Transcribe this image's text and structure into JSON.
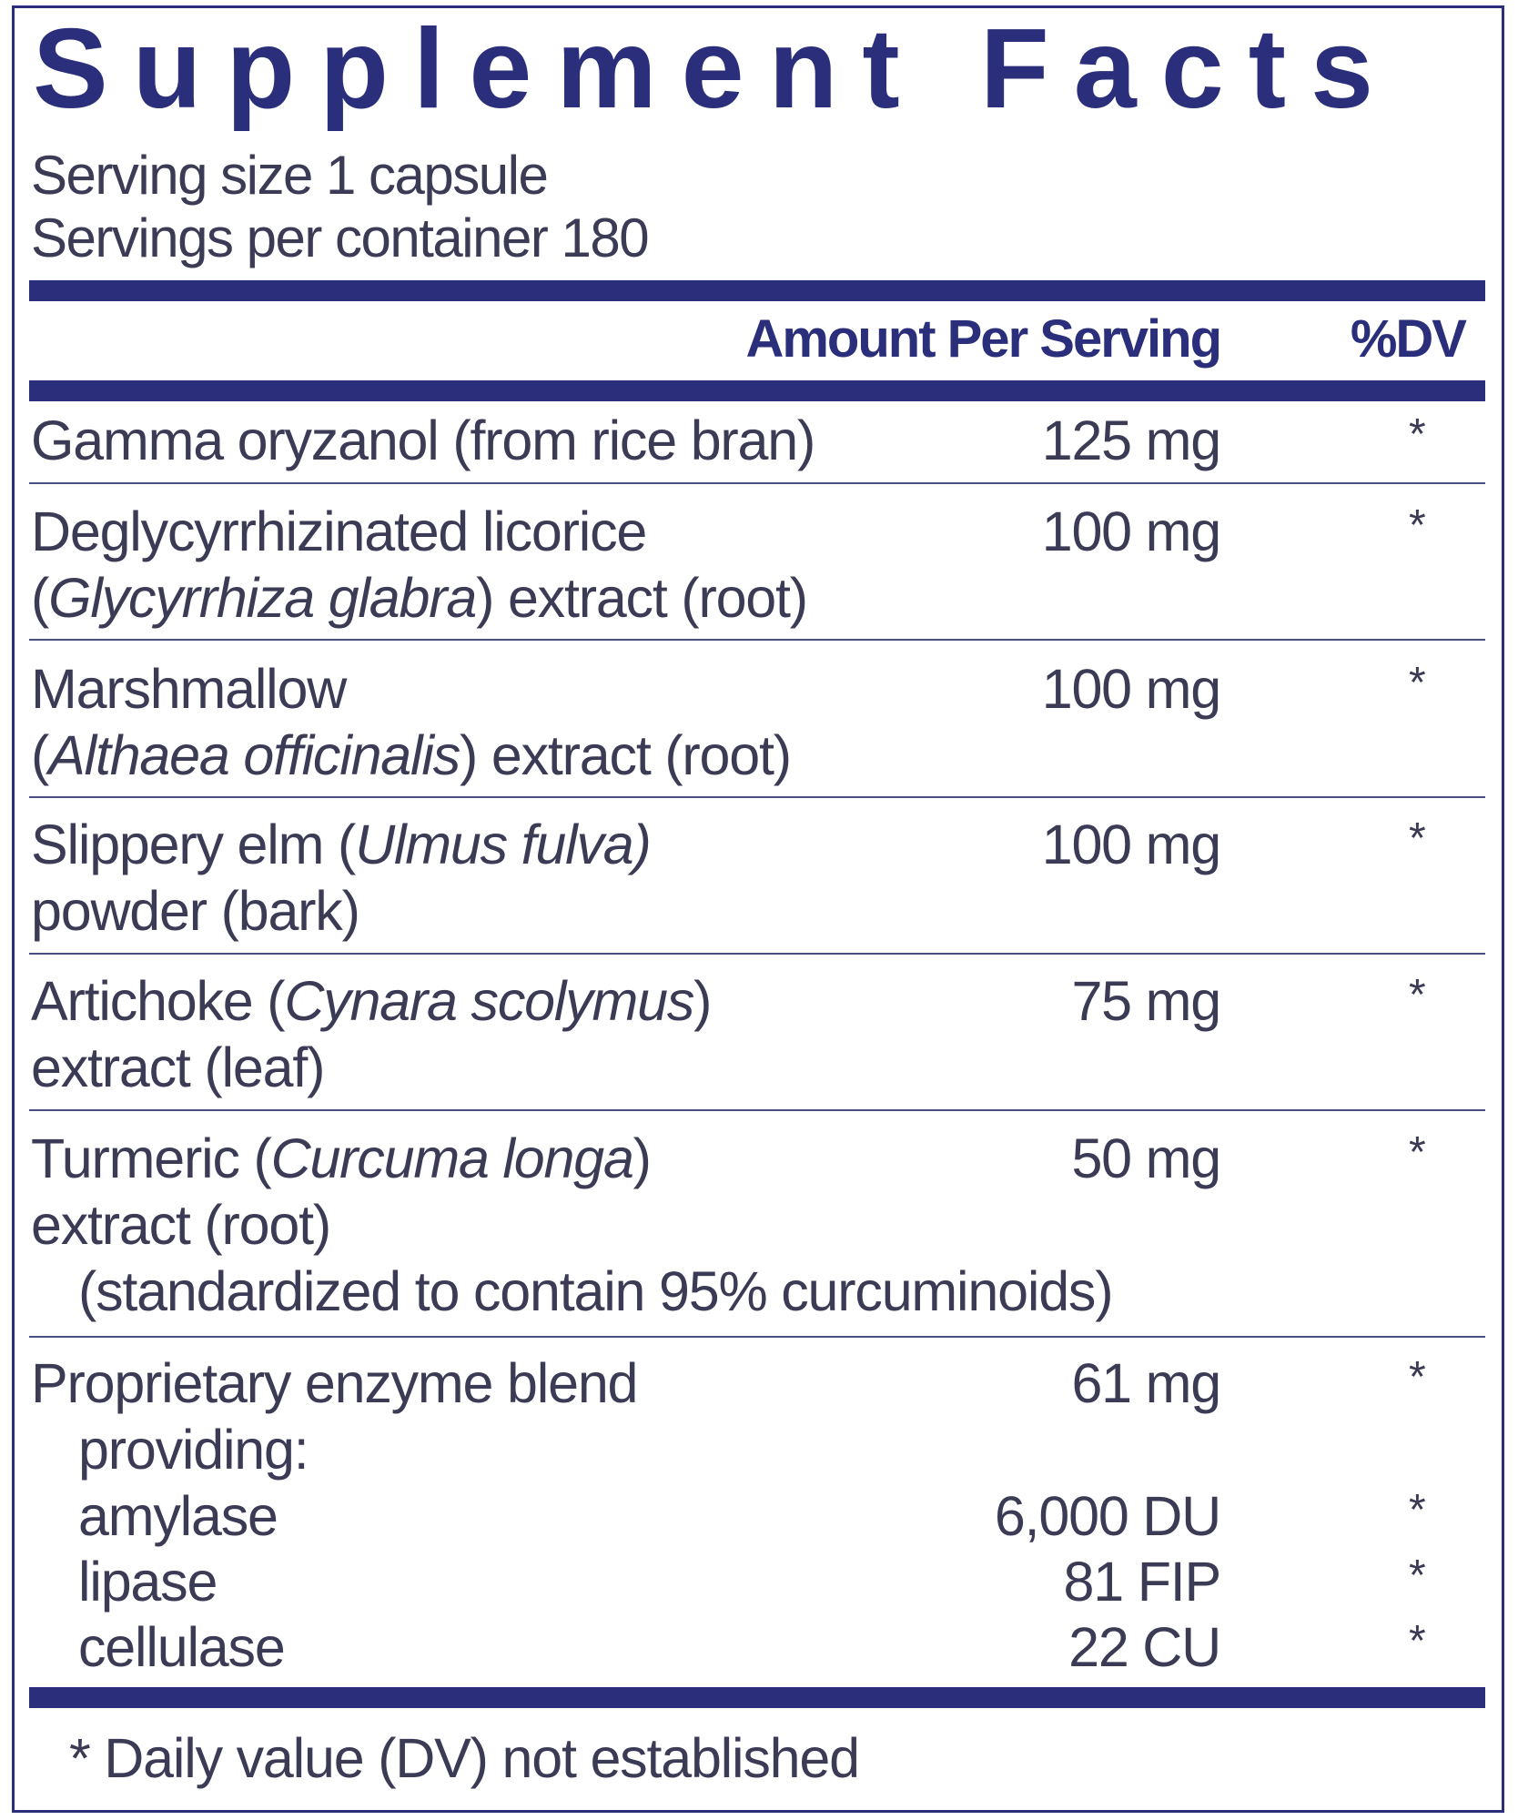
{
  "title": "Supplement Facts",
  "serving_size": "Serving size  1 capsule",
  "servings_per_container": "Servings per container  180",
  "header": {
    "amount": "Amount Per Serving",
    "dv": "%DV"
  },
  "colors": {
    "navy": "#2b2f7b",
    "text": "#3b3b55"
  },
  "rows": [
    {
      "l1": [
        "Gamma oryzanol (from rice bran)"
      ],
      "amount": "125 mg",
      "dv": "*"
    },
    {
      "l1": [
        "Deglycyrrhizinated licorice"
      ],
      "l2": [
        "(",
        "Glycyrrhiza glabra",
        ") extract (root)"
      ],
      "amount": "100 mg",
      "dv": "*"
    },
    {
      "l1": [
        "Marshmallow"
      ],
      "l2": [
        "(",
        "Althaea officinalis",
        ") extract (root)"
      ],
      "amount": "100 mg",
      "dv": "*"
    },
    {
      "l1": [
        "Slippery elm (",
        "Ulmus fulva)"
      ],
      "l2": [
        "powder (bark)"
      ],
      "amount": "100 mg",
      "dv": "*"
    },
    {
      "l1": [
        "Artichoke (",
        "Cynara scolymus",
        ")"
      ],
      "l2": [
        "extract (leaf)"
      ],
      "amount": "75 mg",
      "dv": "*"
    },
    {
      "l1": [
        "Turmeric (",
        "Curcuma longa",
        ")"
      ],
      "l2": [
        "extract (root)"
      ],
      "l3": [
        "(standardized to contain 95% curcuminoids)"
      ],
      "amount": "50 mg",
      "dv": "*"
    },
    {
      "l1": [
        "Proprietary enzyme blend"
      ],
      "l2": [
        "providing:"
      ],
      "amount": "61 mg",
      "dv": "*",
      "sub": [
        {
          "name": "amylase",
          "amount": "6,000 DU",
          "dv": "*"
        },
        {
          "name": "lipase",
          "amount": "81 FIP",
          "dv": "*"
        },
        {
          "name": "cellulase",
          "amount": "22 CU",
          "dv": "*"
        }
      ]
    }
  ],
  "footnote": "* Daily value (DV) not established"
}
